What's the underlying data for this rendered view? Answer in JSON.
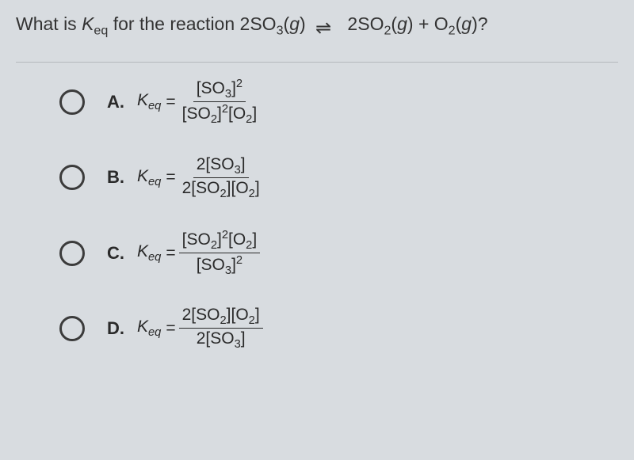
{
  "question": {
    "prefix": "What is ",
    "keq_html": "<span class='ital'>K</span><sub>eq</sub>",
    "mid": " for the reaction 2SO<sub>3</sub>(<span class='ital'>g</span>) ",
    "rhs": " 2SO<sub>2</sub>(<span class='ital'>g</span>) + O<sub>2</sub>(<span class='ital'>g</span>)?"
  },
  "options": [
    {
      "letter": "A.",
      "numerator": "[SO<sub>3</sub>]<sup>2</sup>",
      "denominator": "[SO<sub>2</sub>]<sup>2</sup>[O<sub>2</sub>]"
    },
    {
      "letter": "B.",
      "numerator": "2[SO<sub>3</sub>]",
      "denominator": "2[SO<sub>2</sub>][O<sub>2</sub>]"
    },
    {
      "letter": "C.",
      "numerator": "[SO<sub>2</sub>]<sup>2</sup>[O<sub>2</sub>]",
      "denominator": "[SO<sub>3</sub>]<sup>2</sup>"
    },
    {
      "letter": "D.",
      "numerator": "2[SO<sub>2</sub>][O<sub>2</sub>]",
      "denominator": "2[SO<sub>3</sub>]"
    }
  ],
  "keq_label": "<span class='ital'>K</span><sub><span class='ital'>eq</span></sub>",
  "equals": "=",
  "colors": {
    "background": "#d8dce0",
    "text": "#2a2a2a",
    "divider": "#b5b9bd",
    "radio_border": "#3b3b3b"
  }
}
